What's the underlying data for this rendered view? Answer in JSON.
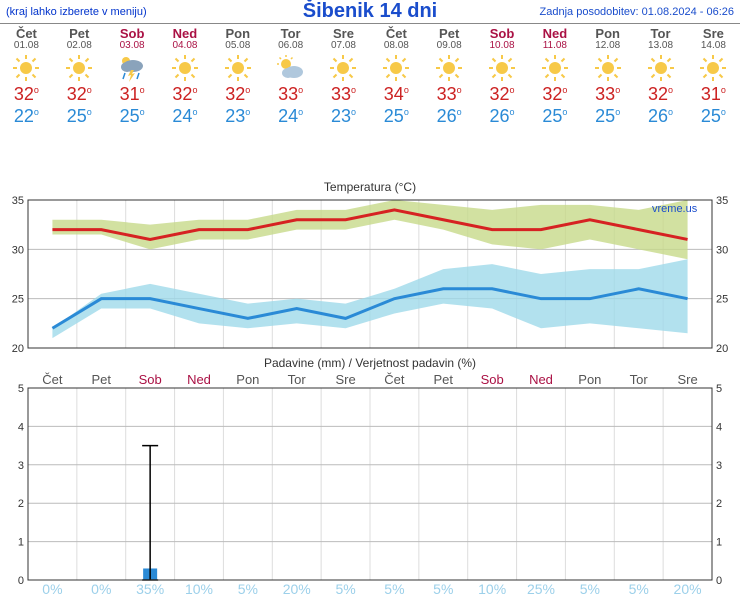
{
  "header": {
    "menu_hint": "(kraj lahko izberete v meniju)",
    "title": "Šibenik 14 dni",
    "updated": "Zadnja posodobitev: 01.08.2024 - 06:26"
  },
  "colors": {
    "weekday": "#555555",
    "weekend": "#aa1144",
    "hi": "#cc2222",
    "lo": "#2a8ad6",
    "grid": "#bbbbbb",
    "subgrid": "#dddddd",
    "temp_hi_line": "#d62222",
    "temp_lo_line": "#2a8ad6",
    "temp_hi_band": "#c7d98a",
    "temp_lo_band": "#9fd9ea",
    "precip_bar": "#2a8ad6",
    "precip_pct": "#9cd0ea",
    "axis": "#333333",
    "watermark": "#1a4dcc"
  },
  "days": [
    {
      "dow": "Čet",
      "date": "01.08",
      "weekend": false,
      "icon": "sun",
      "hi": 32,
      "lo": 22,
      "precip_mm": 0,
      "precip_lo": 0,
      "precip_hi": 0,
      "precip_pct": 0
    },
    {
      "dow": "Pet",
      "date": "02.08",
      "weekend": false,
      "icon": "sun",
      "hi": 32,
      "lo": 25,
      "precip_mm": 0,
      "precip_lo": 0,
      "precip_hi": 0,
      "precip_pct": 0
    },
    {
      "dow": "Sob",
      "date": "03.08",
      "weekend": true,
      "icon": "storm",
      "hi": 31,
      "lo": 25,
      "precip_mm": 0.3,
      "precip_lo": 0,
      "precip_hi": 3.5,
      "precip_pct": 35
    },
    {
      "dow": "Ned",
      "date": "04.08",
      "weekend": true,
      "icon": "sun",
      "hi": 32,
      "lo": 24,
      "precip_mm": 0,
      "precip_lo": 0,
      "precip_hi": 0,
      "precip_pct": 10
    },
    {
      "dow": "Pon",
      "date": "05.08",
      "weekend": false,
      "icon": "sun",
      "hi": 32,
      "lo": 23,
      "precip_mm": 0,
      "precip_lo": 0,
      "precip_hi": 0,
      "precip_pct": 5
    },
    {
      "dow": "Tor",
      "date": "06.08",
      "weekend": false,
      "icon": "partcloud",
      "hi": 33,
      "lo": 24,
      "precip_mm": 0,
      "precip_lo": 0,
      "precip_hi": 0,
      "precip_pct": 20
    },
    {
      "dow": "Sre",
      "date": "07.08",
      "weekend": false,
      "icon": "sun",
      "hi": 33,
      "lo": 23,
      "precip_mm": 0,
      "precip_lo": 0,
      "precip_hi": 0,
      "precip_pct": 5
    },
    {
      "dow": "Čet",
      "date": "08.08",
      "weekend": false,
      "icon": "sun",
      "hi": 34,
      "lo": 25,
      "precip_mm": 0,
      "precip_lo": 0,
      "precip_hi": 0,
      "precip_pct": 5
    },
    {
      "dow": "Pet",
      "date": "09.08",
      "weekend": false,
      "icon": "sun",
      "hi": 33,
      "lo": 26,
      "precip_mm": 0,
      "precip_lo": 0,
      "precip_hi": 0,
      "precip_pct": 5
    },
    {
      "dow": "Sob",
      "date": "10.08",
      "weekend": true,
      "icon": "sun",
      "hi": 32,
      "lo": 26,
      "precip_mm": 0,
      "precip_lo": 0,
      "precip_hi": 0,
      "precip_pct": 10
    },
    {
      "dow": "Ned",
      "date": "11.08",
      "weekend": true,
      "icon": "sun",
      "hi": 32,
      "lo": 25,
      "precip_mm": 0,
      "precip_lo": 0,
      "precip_hi": 0,
      "precip_pct": 25
    },
    {
      "dow": "Pon",
      "date": "12.08",
      "weekend": false,
      "icon": "sun",
      "hi": 33,
      "lo": 25,
      "precip_mm": 0,
      "precip_lo": 0,
      "precip_hi": 0,
      "precip_pct": 5
    },
    {
      "dow": "Tor",
      "date": "13.08",
      "weekend": false,
      "icon": "sun",
      "hi": 32,
      "lo": 26,
      "precip_mm": 0,
      "precip_lo": 0,
      "precip_hi": 0,
      "precip_pct": 5
    },
    {
      "dow": "Sre",
      "date": "14.08",
      "weekend": false,
      "icon": "sun",
      "hi": 31,
      "lo": 25,
      "precip_mm": 0,
      "precip_lo": 0,
      "precip_hi": 0,
      "precip_pct": 20
    }
  ],
  "temp_chart": {
    "label": "Temperatura (°C)",
    "ymin": 20,
    "ymax": 35,
    "ystep": 5,
    "hi_band_upper": [
      33,
      33,
      32.5,
      33,
      33,
      34,
      34,
      35,
      34.5,
      34,
      34.5,
      34.5,
      34,
      35
    ],
    "hi_band_lower": [
      31.5,
      31.5,
      30,
      31,
      31,
      32,
      32,
      33,
      32,
      30.5,
      30,
      31,
      30,
      29
    ],
    "lo_band_upper": [
      22,
      25.5,
      26.5,
      25.5,
      24.5,
      25,
      24.5,
      26,
      28,
      28.5,
      27.5,
      28,
      28,
      29
    ],
    "lo_band_lower": [
      21,
      24,
      24,
      22.5,
      22,
      22.5,
      22,
      23.5,
      24.5,
      24,
      22,
      22.5,
      22,
      21.5
    ],
    "watermark": "vreme.us"
  },
  "precip_chart": {
    "label": "Padavine (mm) / Verjetnost padavin (%)",
    "ymin": 0,
    "ymax": 5,
    "ystep": 1
  }
}
